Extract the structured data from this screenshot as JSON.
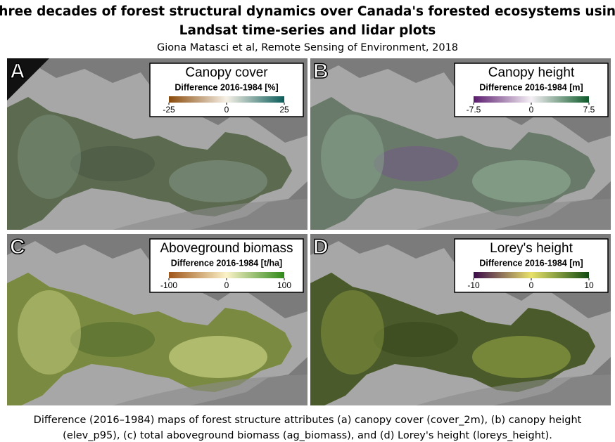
{
  "header": {
    "title_lines": [
      "Three decades of forest structural dynamics over Canada's forested ecosystems using",
      "Landsat time-series and lidar plots"
    ],
    "author": "Giona Matasci et al, Remote Sensing of Environment, 2018"
  },
  "panels": [
    {
      "letter": "A",
      "title": "Canopy cover",
      "subtitle": "Difference 2016-1984 [%]",
      "ticks": [
        "-25",
        "0",
        "25"
      ]
    },
    {
      "letter": "B",
      "title": "Canopy height",
      "subtitle": "Difference 2016-1984 [m]",
      "ticks": [
        "-7.5",
        "0",
        "7.5"
      ]
    },
    {
      "letter": "C",
      "title": "Aboveground biomass",
      "subtitle": "Difference 2016-1984 [t/ha]",
      "ticks": [
        "-100",
        "0",
        "100"
      ]
    },
    {
      "letter": "D",
      "title": "Lorey's height",
      "subtitle": "Difference 2016-1984 [m]",
      "ticks": [
        "-10",
        "0",
        "10"
      ]
    }
  ],
  "caption": {
    "lines": [
      "Difference (2016–1984) maps of forest structure attributes (a) canopy cover (cover_2m), (b) canopy height",
      "(elev_p95), (c) total aboveground biomass (ag_biomass), and (d) Lorey's height (loreys_height)."
    ]
  }
}
